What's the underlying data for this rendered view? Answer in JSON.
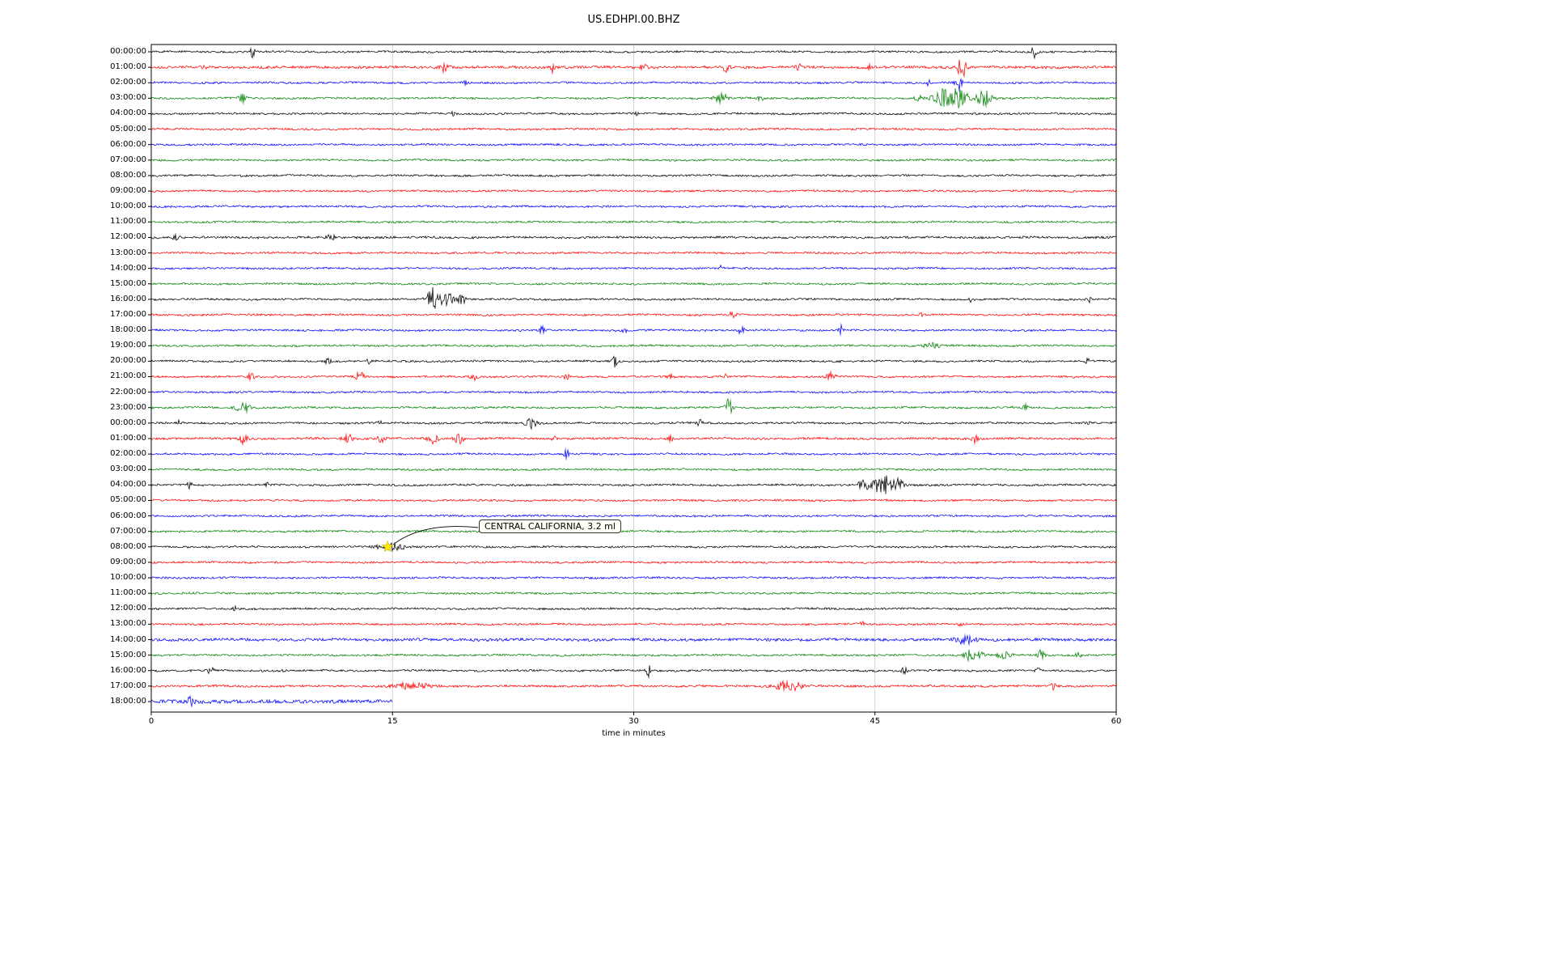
{
  "title": "US.EDHPI.00.BHZ",
  "chart_data": {
    "type": "line",
    "kind": "helicorder-dayplot",
    "station": "US.EDHPI.00.BHZ",
    "xlabel": "time in minutes",
    "xlim": [
      0,
      60
    ],
    "x_ticks": [
      0,
      15,
      30,
      45,
      60
    ],
    "grid_minutes": [
      15,
      30,
      45
    ],
    "grid_color": "#c9c9c9",
    "trace_color_cycle": [
      "#000000",
      "#ff0000",
      "#0000ff",
      "#008000"
    ],
    "annotation": {
      "text": "CENTRAL CALIFORNIA, 3.2 ml",
      "row_label": "08:00:00",
      "row_index": 32,
      "x_minutes": 14.7,
      "marker": "yellow-star",
      "marker_color": "#ffe900"
    },
    "rows": [
      {
        "label": "00:00:00",
        "color": "black",
        "noise": 1.0,
        "events": [
          {
            "m": 6.3,
            "a": 7,
            "w": 0.1
          },
          {
            "m": 54.9,
            "a": 8,
            "w": 0.12
          }
        ]
      },
      {
        "label": "01:00:00",
        "color": "red",
        "noise": 1.3,
        "events": [
          {
            "m": 3.2,
            "a": 4,
            "w": 0.15
          },
          {
            "m": 18.3,
            "a": 6,
            "w": 0.2
          },
          {
            "m": 24.9,
            "a": 6,
            "w": 0.1
          },
          {
            "m": 30.6,
            "a": 4,
            "w": 0.15
          },
          {
            "m": 35.8,
            "a": 5,
            "w": 0.2
          },
          {
            "m": 40.2,
            "a": 4,
            "w": 0.15
          },
          {
            "m": 44.6,
            "a": 3,
            "w": 0.1
          },
          {
            "m": 50.4,
            "a": 13,
            "w": 0.18
          }
        ]
      },
      {
        "label": "02:00:00",
        "color": "blue",
        "noise": 1.0,
        "events": [
          {
            "m": 19.6,
            "a": 5,
            "w": 0.1
          },
          {
            "m": 48.3,
            "a": 4,
            "w": 0.1
          },
          {
            "m": 50.2,
            "a": 16,
            "w": 0.12
          }
        ]
      },
      {
        "label": "03:00:00",
        "color": "green",
        "noise": 1.0,
        "events": [
          {
            "m": 5.7,
            "a": 5,
            "w": 0.15
          },
          {
            "m": 35.4,
            "a": 8,
            "w": 0.25
          },
          {
            "m": 37.9,
            "a": 4,
            "w": 0.15
          },
          {
            "m": 47.7,
            "a": 4,
            "w": 0.15
          },
          {
            "m": 49.8,
            "a": 15,
            "w": 0.7
          },
          {
            "m": 51.8,
            "a": 10,
            "w": 0.3
          }
        ]
      },
      {
        "label": "04:00:00",
        "color": "black",
        "noise": 1.0,
        "events": [
          {
            "m": 18.8,
            "a": 2.5,
            "w": 0.1
          },
          {
            "m": 30.2,
            "a": 2,
            "w": 0.1
          }
        ]
      },
      {
        "label": "05:00:00",
        "color": "red",
        "noise": 1.0,
        "events": []
      },
      {
        "label": "06:00:00",
        "color": "blue",
        "noise": 1.0,
        "events": []
      },
      {
        "label": "07:00:00",
        "color": "green",
        "noise": 1.0,
        "events": []
      },
      {
        "label": "08:00:00",
        "color": "black",
        "noise": 1.0,
        "events": []
      },
      {
        "label": "09:00:00",
        "color": "red",
        "noise": 1.0,
        "events": []
      },
      {
        "label": "10:00:00",
        "color": "blue",
        "noise": 1.0,
        "events": []
      },
      {
        "label": "11:00:00",
        "color": "green",
        "noise": 1.0,
        "events": []
      },
      {
        "label": "12:00:00",
        "color": "black",
        "noise": 1.15,
        "events": [
          {
            "m": 1.5,
            "a": 3,
            "w": 0.2
          },
          {
            "m": 11.2,
            "a": 3,
            "w": 0.2
          }
        ]
      },
      {
        "label": "13:00:00",
        "color": "red",
        "noise": 1.0,
        "events": []
      },
      {
        "label": "14:00:00",
        "color": "blue",
        "noise": 1.0,
        "events": [
          {
            "m": 35.4,
            "a": 3,
            "w": 0.1
          }
        ]
      },
      {
        "label": "15:00:00",
        "color": "green",
        "noise": 1.0,
        "events": []
      },
      {
        "label": "16:00:00",
        "color": "black",
        "noise": 1.0,
        "events": [
          {
            "m": 17.6,
            "a": 15,
            "w": 0.3
          },
          {
            "m": 18.5,
            "a": 9,
            "w": 0.2
          },
          {
            "m": 19.3,
            "a": 7,
            "w": 0.15
          },
          {
            "m": 51.0,
            "a": 3,
            "w": 0.1
          },
          {
            "m": 58.3,
            "a": 4,
            "w": 0.1
          }
        ]
      },
      {
        "label": "17:00:00",
        "color": "red",
        "noise": 1.0,
        "events": [
          {
            "m": 36.2,
            "a": 5,
            "w": 0.15
          },
          {
            "m": 47.9,
            "a": 4,
            "w": 0.1
          },
          {
            "m": 55.2,
            "a": 3,
            "w": 0.1
          }
        ]
      },
      {
        "label": "18:00:00",
        "color": "blue",
        "noise": 1.0,
        "events": [
          {
            "m": 24.3,
            "a": 5,
            "w": 0.1
          },
          {
            "m": 29.4,
            "a": 5,
            "w": 0.1
          },
          {
            "m": 36.7,
            "a": 8,
            "w": 0.1
          },
          {
            "m": 42.9,
            "a": 6,
            "w": 0.1
          }
        ]
      },
      {
        "label": "19:00:00",
        "color": "green",
        "noise": 1.0,
        "events": [
          {
            "m": 48.6,
            "a": 3,
            "w": 0.4
          }
        ]
      },
      {
        "label": "20:00:00",
        "color": "black",
        "noise": 1.0,
        "events": [
          {
            "m": 11.0,
            "a": 4,
            "w": 0.12
          },
          {
            "m": 13.5,
            "a": 3,
            "w": 0.1
          },
          {
            "m": 28.8,
            "a": 7,
            "w": 0.12
          },
          {
            "m": 58.2,
            "a": 3,
            "w": 0.1
          }
        ]
      },
      {
        "label": "21:00:00",
        "color": "red",
        "noise": 1.0,
        "events": [
          {
            "m": 6.2,
            "a": 4,
            "w": 0.15
          },
          {
            "m": 13.0,
            "a": 7,
            "w": 0.2
          },
          {
            "m": 20.0,
            "a": 5,
            "w": 0.15
          },
          {
            "m": 25.8,
            "a": 4,
            "w": 0.12
          },
          {
            "m": 32.3,
            "a": 4,
            "w": 0.12
          },
          {
            "m": 35.6,
            "a": 4,
            "w": 0.12
          },
          {
            "m": 42.2,
            "a": 7,
            "w": 0.2
          },
          {
            "m": 57.5,
            "a": 3,
            "w": 0.1
          }
        ]
      },
      {
        "label": "22:00:00",
        "color": "blue",
        "noise": 1.0,
        "events": []
      },
      {
        "label": "23:00:00",
        "color": "green",
        "noise": 1.0,
        "events": [
          {
            "m": 5.7,
            "a": 6,
            "w": 0.3
          },
          {
            "m": 35.9,
            "a": 10,
            "w": 0.15
          },
          {
            "m": 54.3,
            "a": 4,
            "w": 0.12
          }
        ]
      },
      {
        "label": "00:00:00",
        "color": "black",
        "noise": 1.0,
        "events": [
          {
            "m": 1.7,
            "a": 3,
            "w": 0.1
          },
          {
            "m": 14.2,
            "a": 3,
            "w": 0.1
          },
          {
            "m": 23.6,
            "a": 6,
            "w": 0.25
          },
          {
            "m": 34.1,
            "a": 4,
            "w": 0.12
          },
          {
            "m": 58.2,
            "a": 3,
            "w": 0.1
          }
        ]
      },
      {
        "label": "01:00:00",
        "color": "red",
        "noise": 1.1,
        "events": [
          {
            "m": 5.7,
            "a": 6,
            "w": 0.2
          },
          {
            "m": 12.2,
            "a": 7,
            "w": 0.2
          },
          {
            "m": 14.3,
            "a": 5,
            "w": 0.15
          },
          {
            "m": 17.5,
            "a": 7,
            "w": 0.2
          },
          {
            "m": 19.1,
            "a": 6,
            "w": 0.2
          },
          {
            "m": 25.1,
            "a": 6,
            "w": 0.1
          },
          {
            "m": 32.3,
            "a": 5,
            "w": 0.12
          },
          {
            "m": 51.2,
            "a": 5,
            "w": 0.12
          }
        ]
      },
      {
        "label": "02:00:00",
        "color": "blue",
        "noise": 1.0,
        "events": [
          {
            "m": 25.8,
            "a": 6,
            "w": 0.1
          }
        ]
      },
      {
        "label": "03:00:00",
        "color": "green",
        "noise": 1.0,
        "events": []
      },
      {
        "label": "04:00:00",
        "color": "black",
        "noise": 1.0,
        "events": [
          {
            "m": 2.4,
            "a": 4,
            "w": 0.12
          },
          {
            "m": 7.2,
            "a": 3,
            "w": 0.1
          },
          {
            "m": 44.3,
            "a": 8,
            "w": 0.2
          },
          {
            "m": 45.5,
            "a": 14,
            "w": 0.4
          },
          {
            "m": 46.5,
            "a": 7,
            "w": 0.2
          }
        ]
      },
      {
        "label": "05:00:00",
        "color": "red",
        "noise": 1.0,
        "events": []
      },
      {
        "label": "06:00:00",
        "color": "blue",
        "noise": 1.0,
        "events": []
      },
      {
        "label": "07:00:00",
        "color": "green",
        "noise": 1.0,
        "events": []
      },
      {
        "label": "08:00:00",
        "color": "black",
        "noise": 1.0,
        "events": [
          {
            "m": 14.9,
            "a": 4,
            "w": 0.6
          }
        ]
      },
      {
        "label": "09:00:00",
        "color": "red",
        "noise": 1.0,
        "events": []
      },
      {
        "label": "10:00:00",
        "color": "blue",
        "noise": 1.0,
        "events": []
      },
      {
        "label": "11:00:00",
        "color": "green",
        "noise": 1.0,
        "events": []
      },
      {
        "label": "12:00:00",
        "color": "black",
        "noise": 1.0,
        "events": [
          {
            "m": 5.2,
            "a": 2.5,
            "w": 0.1
          }
        ]
      },
      {
        "label": "13:00:00",
        "color": "red",
        "noise": 1.0,
        "events": [
          {
            "m": 44.2,
            "a": 3,
            "w": 0.1
          },
          {
            "m": 50.3,
            "a": 4,
            "w": 0.15
          }
        ]
      },
      {
        "label": "14:00:00",
        "color": "blue",
        "noise": 1.5,
        "events": [
          {
            "m": 50.6,
            "a": 5,
            "w": 0.4
          }
        ]
      },
      {
        "label": "15:00:00",
        "color": "green",
        "noise": 1.0,
        "events": [
          {
            "m": 50.8,
            "a": 13,
            "w": 0.15
          },
          {
            "m": 51.5,
            "a": 6,
            "w": 0.3
          },
          {
            "m": 53.0,
            "a": 4,
            "w": 0.3
          },
          {
            "m": 55.3,
            "a": 6,
            "w": 0.15
          },
          {
            "m": 57.6,
            "a": 5,
            "w": 0.12
          }
        ]
      },
      {
        "label": "16:00:00",
        "color": "black",
        "noise": 1.0,
        "events": [
          {
            "m": 3.7,
            "a": 5,
            "w": 0.12
          },
          {
            "m": 8.2,
            "a": 3,
            "w": 0.1
          },
          {
            "m": 30.9,
            "a": 8,
            "w": 0.1
          },
          {
            "m": 46.8,
            "a": 6,
            "w": 0.12
          },
          {
            "m": 55.1,
            "a": 4,
            "w": 0.1
          }
        ]
      },
      {
        "label": "17:00:00",
        "color": "red",
        "noise": 1.1,
        "events": [
          {
            "m": 16.2,
            "a": 4,
            "w": 0.8
          },
          {
            "m": 39.6,
            "a": 6,
            "w": 0.6
          },
          {
            "m": 56.1,
            "a": 5,
            "w": 0.1
          }
        ]
      },
      {
        "label": "18:00:00",
        "color": "blue",
        "noise": 1.9,
        "extent": 15,
        "events": [
          {
            "m": 2.4,
            "a": 5,
            "w": 0.15
          }
        ]
      }
    ]
  }
}
